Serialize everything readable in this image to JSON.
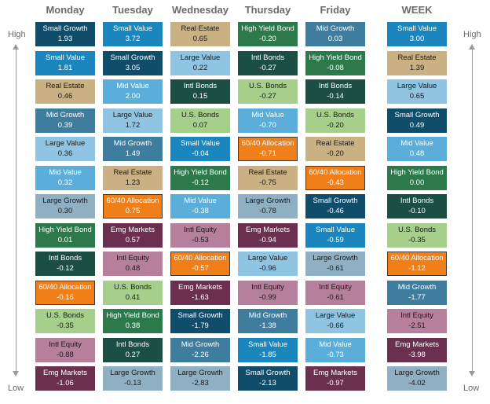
{
  "chart_data": {
    "type": "table",
    "side_labels": {
      "high": "High",
      "low": "Low"
    },
    "colors": {
      "Small Growth": "#0f4d6b",
      "Small Value": "#1b86bd",
      "Real Estate": "#c9b184",
      "Mid Growth": "#3f7d9e",
      "Large Value": "#8fc4e3",
      "Mid Value": "#5aaed9",
      "Large Growth": "#8fb0c2",
      "High Yield Bond": "#2c7a4c",
      "Intl Bonds": "#1b4f44",
      "60/40 Allocation": "#f07f1a",
      "U.S. Bonds": "#a6cf8c",
      "Intl Equity": "#b67f9c",
      "Emg Markets": "#6b2f4f"
    },
    "light_text": [
      "Small Growth",
      "Small Value",
      "Mid Growth",
      "High Yield Bond",
      "Intl Bonds",
      "60/40 Allocation",
      "Emg Markets",
      "Mid Value"
    ],
    "columns": [
      {
        "header": "Monday",
        "cells": [
          {
            "name": "Small Growth",
            "value": "1.93"
          },
          {
            "name": "Small Value",
            "value": "1.81"
          },
          {
            "name": "Real Estate",
            "value": "0.46"
          },
          {
            "name": "Mid Growth",
            "value": "0.39"
          },
          {
            "name": "Large Value",
            "value": "0.36"
          },
          {
            "name": "Mid Value",
            "value": "0.32"
          },
          {
            "name": "Large Growth",
            "value": "0.30"
          },
          {
            "name": "High Yield Bond",
            "value": "0.01"
          },
          {
            "name": "Intl Bonds",
            "value": "-0.12"
          },
          {
            "name": "60/40 Allocation",
            "value": "-0.16"
          },
          {
            "name": "U.S. Bonds",
            "value": "-0.35"
          },
          {
            "name": "Intl Equity",
            "value": "-0.88"
          },
          {
            "name": "Emg Markets",
            "value": "-1.06"
          }
        ]
      },
      {
        "header": "Tuesday",
        "cells": [
          {
            "name": "Small Value",
            "value": "3.72"
          },
          {
            "name": "Small Growth",
            "value": "3.05"
          },
          {
            "name": "Mid Value",
            "value": "2.00"
          },
          {
            "name": "Large Value",
            "value": "1.72"
          },
          {
            "name": "Mid Growth",
            "value": "1.49"
          },
          {
            "name": "Real Estate",
            "value": "1.23"
          },
          {
            "name": "60/40 Allocation",
            "value": "0.75"
          },
          {
            "name": "Emg Markets",
            "value": "0.57"
          },
          {
            "name": "Intl Equity",
            "value": "0.48"
          },
          {
            "name": "U.S. Bonds",
            "value": "0.41"
          },
          {
            "name": "High Yield Bond",
            "value": "0.38"
          },
          {
            "name": "Intl Bonds",
            "value": "0.27"
          },
          {
            "name": "Large Growth",
            "value": "-0.13"
          }
        ]
      },
      {
        "header": "Wednesday",
        "cells": [
          {
            "name": "Real Estate",
            "value": "0.65"
          },
          {
            "name": "Large Value",
            "value": "0.22"
          },
          {
            "name": "Intl Bonds",
            "value": "0.15"
          },
          {
            "name": "U.S. Bonds",
            "value": "0.07"
          },
          {
            "name": "Small Value",
            "value": "-0.04"
          },
          {
            "name": "High Yield Bond",
            "value": "-0.12"
          },
          {
            "name": "Mid Value",
            "value": "-0.38"
          },
          {
            "name": "Intl Equity",
            "value": "-0.53"
          },
          {
            "name": "60/40 Allocation",
            "value": "-0.57"
          },
          {
            "name": "Emg Markets",
            "value": "-1.63"
          },
          {
            "name": "Small Growth",
            "value": "-1.79"
          },
          {
            "name": "Mid Growth",
            "value": "-2.26"
          },
          {
            "name": "Large Growth",
            "value": "-2.83"
          }
        ]
      },
      {
        "header": "Thursday",
        "cells": [
          {
            "name": "High Yield Bond",
            "value": "-0.20"
          },
          {
            "name": "Intl Bonds",
            "value": "-0.27"
          },
          {
            "name": "U.S. Bonds",
            "value": "-0.27"
          },
          {
            "name": "Mid Value",
            "value": "-0.70"
          },
          {
            "name": "60/40 Allocation",
            "value": "-0.71"
          },
          {
            "name": "Real Estate",
            "value": "-0.75"
          },
          {
            "name": "Large Growth",
            "value": "-0.78"
          },
          {
            "name": "Emg Markets",
            "value": "-0.94"
          },
          {
            "name": "Large Value",
            "value": "-0.96"
          },
          {
            "name": "Intl Equity",
            "value": "-0.99"
          },
          {
            "name": "Mid Growth",
            "value": "-1.38"
          },
          {
            "name": "Small Value",
            "value": "-1.85"
          },
          {
            "name": "Small Growth",
            "value": "-2.13"
          }
        ]
      },
      {
        "header": "Friday",
        "cells": [
          {
            "name": "Mid Growth",
            "value": "0.03"
          },
          {
            "name": "High Yield Bond",
            "value": "-0.08"
          },
          {
            "name": "Intl Bonds",
            "value": "-0.14"
          },
          {
            "name": "U.S. Bonds",
            "value": "-0.20"
          },
          {
            "name": "Real Estate",
            "value": "-0.20"
          },
          {
            "name": "60/40 Allocation",
            "value": "-0.43"
          },
          {
            "name": "Small Growth",
            "value": "-0.46"
          },
          {
            "name": "Small Value",
            "value": "-0.59"
          },
          {
            "name": "Large Growth",
            "value": "-0.61"
          },
          {
            "name": "Intl Equity",
            "value": "-0.61"
          },
          {
            "name": "Large Value",
            "value": "-0.66"
          },
          {
            "name": "Mid Value",
            "value": "-0.73"
          },
          {
            "name": "Emg Markets",
            "value": "-0.97"
          }
        ]
      },
      {
        "header": "WEEK",
        "cells": [
          {
            "name": "Small Value",
            "value": "3.00"
          },
          {
            "name": "Real Estate",
            "value": "1.39"
          },
          {
            "name": "Large Value",
            "value": "0.65"
          },
          {
            "name": "Small Growth",
            "value": "0.49"
          },
          {
            "name": "Mid Value",
            "value": "0.48"
          },
          {
            "name": "High Yield Bond",
            "value": "0.00"
          },
          {
            "name": "Intl Bonds",
            "value": "-0.10"
          },
          {
            "name": "U.S. Bonds",
            "value": "-0.35"
          },
          {
            "name": "60/40 Allocation",
            "value": "-1.12"
          },
          {
            "name": "Mid Growth",
            "value": "-1.77"
          },
          {
            "name": "Intl Equity",
            "value": "-2.51"
          },
          {
            "name": "Emg Markets",
            "value": "-3.98"
          },
          {
            "name": "Large Growth",
            "value": "-4.02"
          }
        ]
      }
    ]
  }
}
